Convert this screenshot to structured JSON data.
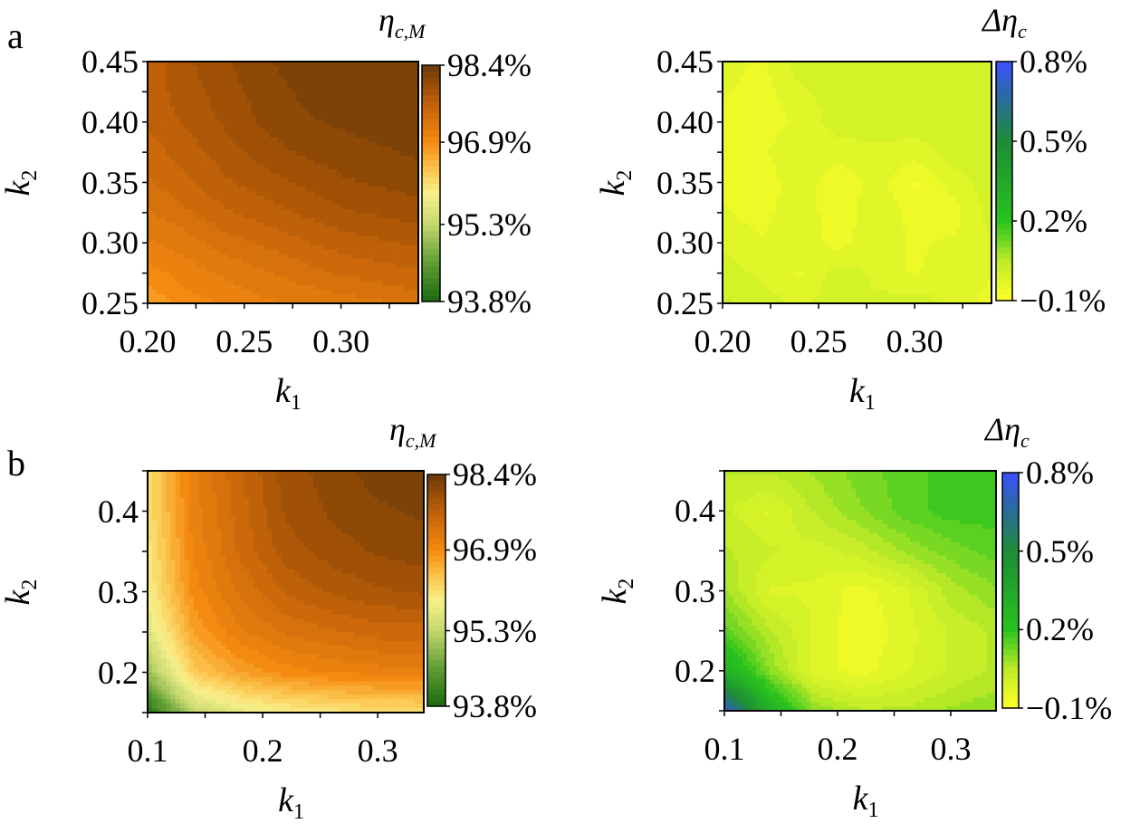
{
  "panels": [
    {
      "letter": "a"
    },
    {
      "letter": "b"
    }
  ],
  "chart_data": [
    {
      "type": "heatmap",
      "panel": "a",
      "title": "η_c,M",
      "title_main": "η",
      "title_sub": "c,M",
      "xlabel": "k1",
      "xlabel_main": "k",
      "xlabel_sub": "1",
      "ylabel": "k2",
      "ylabel_main": "k",
      "ylabel_sub": "2",
      "xlim": [
        0.2,
        0.34
      ],
      "ylim": [
        0.25,
        0.45
      ],
      "xticks": [
        "0.20",
        "0.25",
        "0.30"
      ],
      "xtick_values": [
        0.2,
        0.25,
        0.3
      ],
      "yticks": [
        "0.25",
        "0.30",
        "0.35",
        "0.40",
        "0.45"
      ],
      "ytick_values": [
        0.25,
        0.3,
        0.35,
        0.4,
        0.45
      ],
      "colorbar": {
        "range": [
          93.8,
          98.4
        ],
        "ticks": [
          "98.4%",
          "96.9%",
          "95.3%",
          "93.8%"
        ],
        "tick_values": [
          98.4,
          96.9,
          95.3,
          93.8
        ],
        "colormap": "green-yellow-orange-brown",
        "level_step": 0.15
      },
      "x": [
        0.2,
        0.22,
        0.24,
        0.26,
        0.28,
        0.3,
        0.32,
        0.34
      ],
      "y": [
        0.25,
        0.275,
        0.3,
        0.325,
        0.35,
        0.375,
        0.4,
        0.425,
        0.45
      ],
      "z": [
        [
          96.7,
          96.9,
          97.0,
          97.1,
          97.15,
          97.2,
          97.25,
          97.35
        ],
        [
          96.9,
          97.05,
          97.15,
          97.25,
          97.35,
          97.45,
          97.5,
          97.55
        ],
        [
          97.1,
          97.2,
          97.35,
          97.45,
          97.55,
          97.65,
          97.7,
          97.75
        ],
        [
          97.25,
          97.4,
          97.55,
          97.65,
          97.75,
          97.85,
          97.9,
          97.95
        ],
        [
          97.4,
          97.55,
          97.7,
          97.8,
          97.9,
          98.0,
          98.05,
          98.1
        ],
        [
          97.5,
          97.65,
          97.8,
          97.95,
          98.05,
          98.1,
          98.15,
          98.2
        ],
        [
          97.6,
          97.75,
          97.9,
          98.05,
          98.15,
          98.2,
          98.25,
          98.3
        ],
        [
          97.65,
          97.8,
          97.95,
          98.1,
          98.2,
          98.25,
          98.3,
          98.3
        ],
        [
          97.6,
          97.85,
          98.0,
          98.15,
          98.25,
          98.3,
          98.3,
          98.3
        ]
      ]
    },
    {
      "type": "heatmap",
      "panel": "a",
      "title": "Δη_c",
      "title_main": "Δη",
      "title_sub": "c",
      "xlabel": "k1",
      "xlabel_main": "k",
      "xlabel_sub": "1",
      "ylabel": "k2",
      "ylabel_main": "k",
      "ylabel_sub": "2",
      "xlim": [
        0.2,
        0.34
      ],
      "ylim": [
        0.25,
        0.45
      ],
      "xticks": [
        "0.20",
        "0.25",
        "0.30"
      ],
      "xtick_values": [
        0.2,
        0.25,
        0.3
      ],
      "yticks": [
        "0.25",
        "0.30",
        "0.35",
        "0.40",
        "0.45"
      ],
      "ytick_values": [
        0.25,
        0.3,
        0.35,
        0.4,
        0.45
      ],
      "colorbar": {
        "range": [
          -0.1,
          0.8
        ],
        "ticks": [
          "0.8%",
          "0.5%",
          "0.2%",
          "−0.1%"
        ],
        "tick_values": [
          0.8,
          0.5,
          0.2,
          -0.1
        ],
        "colormap": "yellow-green-blue",
        "level_step": 0.03
      },
      "x": [
        0.2,
        0.22,
        0.24,
        0.26,
        0.28,
        0.3,
        0.32,
        0.34
      ],
      "y": [
        0.25,
        0.275,
        0.3,
        0.325,
        0.35,
        0.375,
        0.4,
        0.425,
        0.45
      ],
      "z": [
        [
          0.02,
          0.0,
          -0.02,
          0.0,
          -0.01,
          0.0,
          -0.02,
          -0.06
        ],
        [
          0.0,
          -0.02,
          -0.05,
          0.0,
          -0.02,
          -0.05,
          -0.02,
          -0.04
        ],
        [
          -0.02,
          -0.04,
          -0.02,
          -0.06,
          -0.02,
          -0.05,
          -0.04,
          -0.02
        ],
        [
          -0.04,
          -0.06,
          -0.02,
          -0.07,
          -0.02,
          -0.06,
          -0.06,
          0.0
        ],
        [
          -0.06,
          -0.07,
          -0.02,
          -0.07,
          -0.03,
          -0.08,
          -0.03,
          0.0
        ],
        [
          -0.05,
          -0.05,
          -0.02,
          -0.03,
          -0.02,
          -0.03,
          0.0,
          0.0
        ],
        [
          -0.06,
          -0.06,
          -0.04,
          0.0,
          0.0,
          0.0,
          0.0,
          0.0
        ],
        [
          -0.04,
          -0.06,
          -0.02,
          0.0,
          0.0,
          0.0,
          0.0,
          0.0
        ],
        [
          -0.03,
          -0.05,
          0.0,
          0.0,
          0.0,
          0.0,
          0.0,
          0.0
        ]
      ]
    },
    {
      "type": "heatmap",
      "panel": "b",
      "title": "η_c,M",
      "title_main": "η",
      "title_sub": "c,M",
      "xlabel": "k1",
      "xlabel_main": "k",
      "xlabel_sub": "1",
      "ylabel": "k2",
      "ylabel_main": "k",
      "ylabel_sub": "2",
      "xlim": [
        0.1,
        0.34
      ],
      "ylim": [
        0.15,
        0.45
      ],
      "xticks": [
        "0.1",
        "0.2",
        "0.3"
      ],
      "xtick_values": [
        0.1,
        0.2,
        0.3
      ],
      "yticks": [
        "0.2",
        "0.3",
        "0.4"
      ],
      "ytick_values": [
        0.2,
        0.3,
        0.4
      ],
      "colorbar": {
        "range": [
          93.8,
          98.4
        ],
        "ticks": [
          "98.4%",
          "96.9%",
          "95.3%",
          "93.8%"
        ],
        "tick_values": [
          98.4,
          96.9,
          95.3,
          93.8
        ],
        "colormap": "green-yellow-orange-brown",
        "level_step": 0.15
      },
      "x": [
        0.1,
        0.14,
        0.18,
        0.22,
        0.26,
        0.3,
        0.34
      ],
      "y": [
        0.15,
        0.2,
        0.25,
        0.3,
        0.35,
        0.4,
        0.45
      ],
      "z": [
        [
          93.9,
          95.3,
          95.7,
          95.9,
          96.0,
          96.1,
          96.1
        ],
        [
          95.0,
          96.3,
          96.7,
          96.9,
          97.0,
          97.05,
          97.1
        ],
        [
          95.6,
          96.7,
          97.1,
          97.3,
          97.4,
          97.5,
          97.5
        ],
        [
          95.9,
          96.9,
          97.3,
          97.6,
          97.75,
          97.85,
          97.9
        ],
        [
          96.0,
          97.0,
          97.45,
          97.8,
          97.95,
          98.05,
          98.1
        ],
        [
          96.1,
          97.05,
          97.5,
          97.9,
          98.05,
          98.15,
          98.2
        ],
        [
          96.1,
          97.1,
          97.55,
          97.95,
          98.1,
          98.25,
          98.3
        ]
      ]
    },
    {
      "type": "heatmap",
      "panel": "b",
      "title": "Δη_c",
      "title_main": "Δη",
      "title_sub": "c",
      "xlabel": "k1",
      "xlabel_main": "k",
      "xlabel_sub": "1",
      "ylabel": "k2",
      "ylabel_main": "k",
      "ylabel_sub": "2",
      "xlim": [
        0.1,
        0.34
      ],
      "ylim": [
        0.15,
        0.45
      ],
      "xticks": [
        "0.1",
        "0.2",
        "0.3"
      ],
      "xtick_values": [
        0.1,
        0.2,
        0.3
      ],
      "yticks": [
        "0.2",
        "0.3",
        "0.4"
      ],
      "ytick_values": [
        0.2,
        0.3,
        0.4
      ],
      "colorbar": {
        "range": [
          -0.1,
          0.8
        ],
        "ticks": [
          "0.8%",
          "0.5%",
          "0.2%",
          "−0.1%"
        ],
        "tick_values": [
          0.8,
          0.5,
          0.2,
          -0.1
        ],
        "colormap": "yellow-green-blue",
        "level_step": 0.03
      },
      "x": [
        0.1,
        0.14,
        0.18,
        0.22,
        0.26,
        0.3,
        0.34
      ],
      "y": [
        0.15,
        0.2,
        0.25,
        0.3,
        0.35,
        0.4,
        0.45
      ],
      "z": [
        [
          0.75,
          0.3,
          0.1,
          0.05,
          0.05,
          0.08,
          0.1
        ],
        [
          0.3,
          0.1,
          -0.03,
          -0.06,
          -0.02,
          0.02,
          0.05
        ],
        [
          0.15,
          0.05,
          -0.02,
          -0.07,
          -0.03,
          0.02,
          0.05
        ],
        [
          0.08,
          -0.02,
          -0.02,
          -0.06,
          -0.02,
          0.06,
          0.1
        ],
        [
          0.05,
          0.02,
          0.0,
          0.03,
          0.08,
          0.12,
          0.15
        ],
        [
          0.02,
          -0.02,
          0.05,
          0.1,
          0.15,
          0.18,
          0.18
        ],
        [
          0.05,
          0.05,
          0.08,
          0.12,
          0.15,
          0.18,
          0.18
        ]
      ]
    }
  ]
}
